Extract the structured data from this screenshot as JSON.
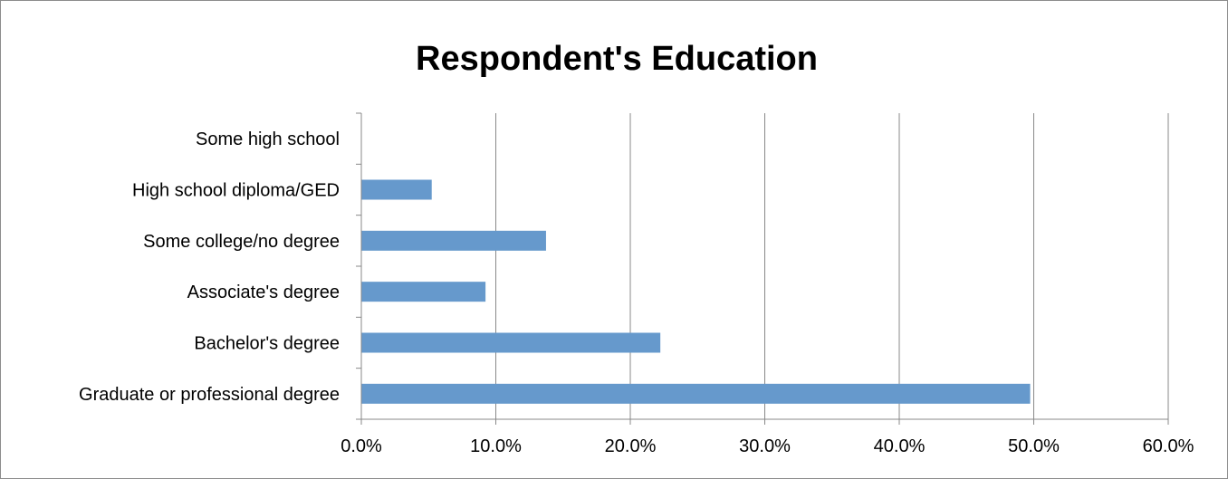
{
  "chart_data": {
    "type": "bar",
    "orientation": "horizontal",
    "title": "Respondent's Education",
    "categories": [
      "Some high school",
      "High school diploma/GED",
      "Some college/no degree",
      "Associate's degree",
      "Bachelor's degree",
      "Graduate or professional degree"
    ],
    "values": [
      0.0,
      5.2,
      13.7,
      9.2,
      22.2,
      49.7
    ],
    "xlim": [
      0,
      60
    ],
    "x_ticks": [
      "0.0%",
      "10.0%",
      "20.0%",
      "30.0%",
      "40.0%",
      "50.0%",
      "60.0%"
    ],
    "xlabel": "",
    "ylabel": "",
    "grid": "vertical",
    "legend": "none",
    "bar_color": "#6699CC",
    "gridline_color": "#888888"
  }
}
